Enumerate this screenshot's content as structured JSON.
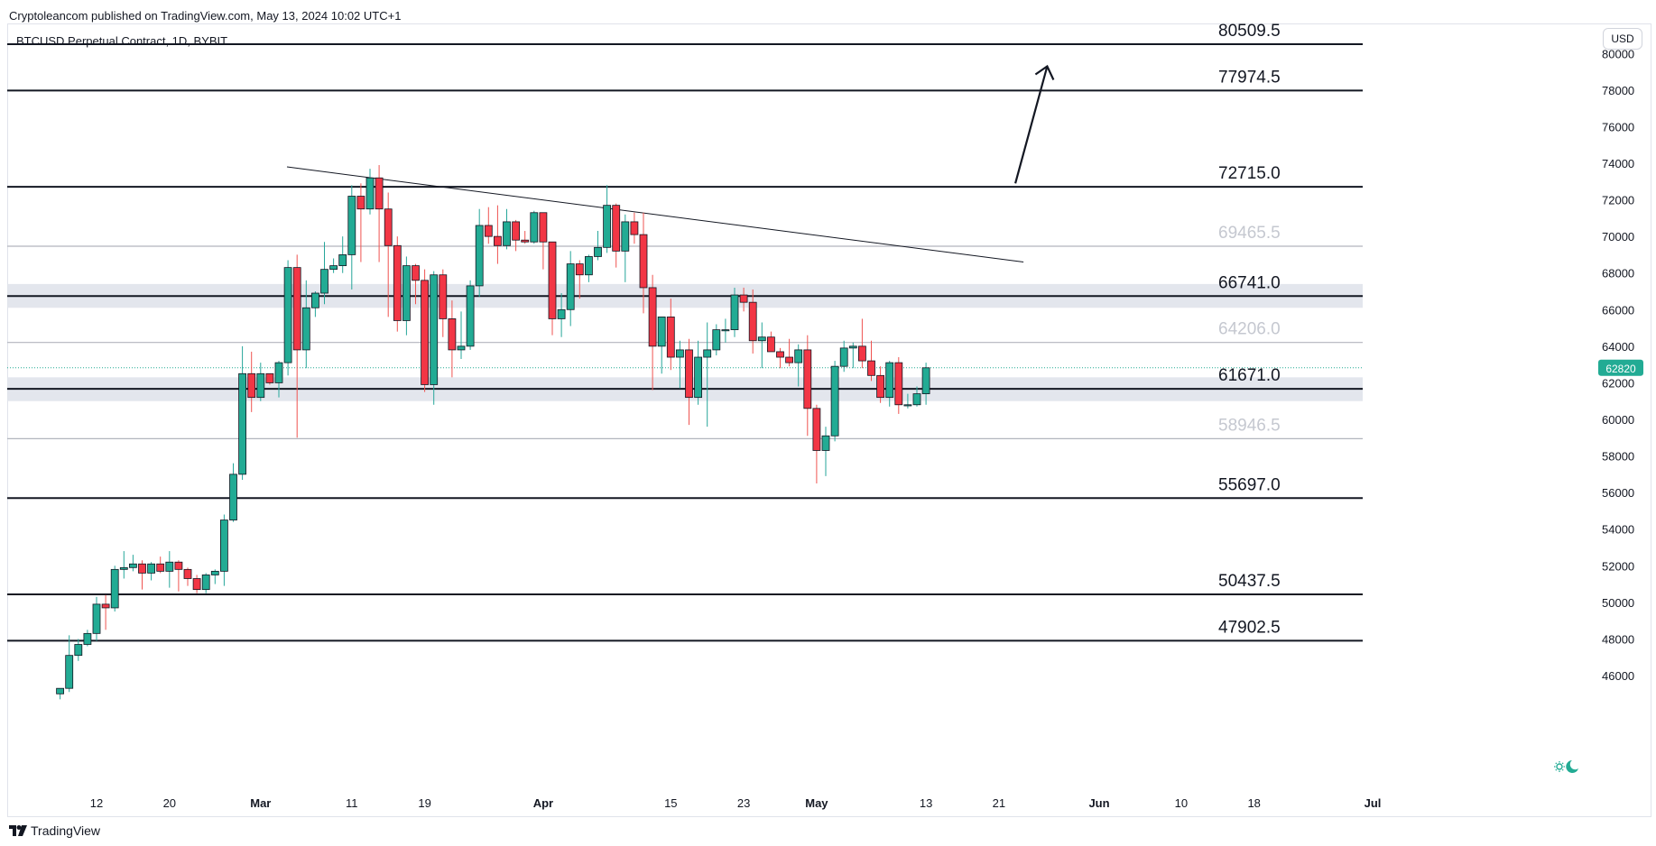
{
  "header": {
    "published": "Cryptoleancom published on TradingView.com, May 13, 2024 10:02 UTC+1",
    "symbol": "BTCUSD Perpetual Contract, 1D, BYBIT",
    "currency_button": "USD"
  },
  "footer": {
    "brand": "TradingView"
  },
  "colors": {
    "up": "#26a69a",
    "down": "#ef5350",
    "body_up": "#22ab94",
    "body_down": "#f23645",
    "price_badge": "#22ab94",
    "zone": "#e0e3eb",
    "level_dark": "#131722",
    "level_light": "#b2b5be"
  },
  "icons": [
    "tradingview-logo-icon",
    "theme-toggle-icon"
  ],
  "chart_data": {
    "type": "candlestick",
    "title": "BTCUSD Perpetual Contract, 1D, BYBIT",
    "ylim": [
      44800,
      84000
    ],
    "y_ticks": [
      46000,
      48000,
      50000,
      52000,
      54000,
      56000,
      58000,
      60000,
      62000,
      64000,
      66000,
      68000,
      70000,
      72000,
      74000,
      76000,
      78000,
      80000
    ],
    "x_ticks": [
      {
        "label": "12",
        "date": "2024-02-12",
        "bold": false
      },
      {
        "label": "20",
        "date": "2024-02-20",
        "bold": false
      },
      {
        "label": "Mar",
        "date": "2024-03-01",
        "bold": true
      },
      {
        "label": "11",
        "date": "2024-03-11",
        "bold": false
      },
      {
        "label": "19",
        "date": "2024-03-19",
        "bold": false
      },
      {
        "label": "Apr",
        "date": "2024-04-01",
        "bold": true
      },
      {
        "label": "15",
        "date": "2024-04-15",
        "bold": false
      },
      {
        "label": "23",
        "date": "2024-04-23",
        "bold": false
      },
      {
        "label": "May",
        "date": "2024-05-01",
        "bold": true
      },
      {
        "label": "13",
        "date": "2024-05-13",
        "bold": false
      },
      {
        "label": "21",
        "date": "2024-05-21",
        "bold": false
      },
      {
        "label": "Jun",
        "date": "2024-06-01",
        "bold": true
      },
      {
        "label": "10",
        "date": "2024-06-10",
        "bold": false
      },
      {
        "label": "18",
        "date": "2024-06-18",
        "bold": false
      },
      {
        "label": "Jul",
        "date": "2024-07-01",
        "bold": true
      }
    ],
    "current_price": 62820,
    "levels": [
      {
        "value": 80509.5,
        "label": "80509.5",
        "style": "dark"
      },
      {
        "value": 77974.5,
        "label": "77974.5",
        "style": "dark"
      },
      {
        "value": 72715.0,
        "label": "72715.0",
        "style": "dark"
      },
      {
        "value": 69465.5,
        "label": "69465.5",
        "style": "light"
      },
      {
        "value": 66741.0,
        "label": "66741.0",
        "style": "dark"
      },
      {
        "value": 64206.0,
        "label": "64206.0",
        "style": "light"
      },
      {
        "value": 61671.0,
        "label": "61671.0",
        "style": "dark"
      },
      {
        "value": 58946.5,
        "label": "58946.5",
        "style": "light"
      },
      {
        "value": 55697.0,
        "label": "55697.0",
        "style": "dark"
      },
      {
        "value": 50437.5,
        "label": "50437.5",
        "style": "dark"
      },
      {
        "value": 47902.5,
        "label": "47902.5",
        "style": "dark"
      }
    ],
    "zones": [
      {
        "low": 66100,
        "high": 67400
      },
      {
        "low": 61000,
        "high": 62300
      }
    ],
    "trendline": {
      "start": {
        "date": "2024-03-06",
        "value": 73800
      },
      "end": {
        "date": "2024-05-23",
        "value": 68600
      }
    },
    "arrow": {
      "start": {
        "date": "2024-05-23",
        "value": 72900
      },
      "end": {
        "date": "2024-05-26",
        "value": 79300
      }
    },
    "candles": [
      {
        "date": "2024-02-08",
        "o": 45000,
        "h": 45300,
        "l": 44700,
        "c": 45300
      },
      {
        "date": "2024-02-09",
        "o": 45300,
        "h": 48200,
        "l": 45100,
        "c": 47100
      },
      {
        "date": "2024-02-10",
        "o": 47100,
        "h": 48000,
        "l": 46800,
        "c": 47700
      },
      {
        "date": "2024-02-11",
        "o": 47700,
        "h": 48500,
        "l": 47600,
        "c": 48300
      },
      {
        "date": "2024-02-12",
        "o": 48300,
        "h": 50300,
        "l": 47900,
        "c": 49900
      },
      {
        "date": "2024-02-13",
        "o": 49900,
        "h": 50400,
        "l": 48500,
        "c": 49700
      },
      {
        "date": "2024-02-14",
        "o": 49700,
        "h": 52000,
        "l": 49500,
        "c": 51800
      },
      {
        "date": "2024-02-15",
        "o": 51800,
        "h": 52800,
        "l": 51300,
        "c": 51900
      },
      {
        "date": "2024-02-16",
        "o": 51900,
        "h": 52600,
        "l": 51700,
        "c": 52100
      },
      {
        "date": "2024-02-17",
        "o": 52100,
        "h": 52300,
        "l": 50700,
        "c": 51600
      },
      {
        "date": "2024-02-18",
        "o": 51600,
        "h": 52200,
        "l": 51200,
        "c": 52100
      },
      {
        "date": "2024-02-19",
        "o": 52100,
        "h": 52500,
        "l": 51600,
        "c": 51700
      },
      {
        "date": "2024-02-20",
        "o": 51700,
        "h": 52800,
        "l": 50800,
        "c": 52200
      },
      {
        "date": "2024-02-21",
        "o": 52200,
        "h": 52300,
        "l": 50600,
        "c": 51800
      },
      {
        "date": "2024-02-22",
        "o": 51800,
        "h": 51900,
        "l": 50900,
        "c": 51300
      },
      {
        "date": "2024-02-23",
        "o": 51300,
        "h": 51500,
        "l": 50500,
        "c": 50700
      },
      {
        "date": "2024-02-24",
        "o": 50700,
        "h": 51600,
        "l": 50500,
        "c": 51500
      },
      {
        "date": "2024-02-25",
        "o": 51500,
        "h": 51800,
        "l": 51000,
        "c": 51700
      },
      {
        "date": "2024-02-26",
        "o": 51700,
        "h": 54800,
        "l": 50900,
        "c": 54500
      },
      {
        "date": "2024-02-27",
        "o": 54500,
        "h": 57600,
        "l": 54400,
        "c": 57000
      },
      {
        "date": "2024-02-28",
        "o": 57000,
        "h": 64000,
        "l": 56700,
        "c": 62500
      },
      {
        "date": "2024-02-29",
        "o": 62500,
        "h": 63700,
        "l": 60400,
        "c": 61200
      },
      {
        "date": "2024-03-01",
        "o": 61200,
        "h": 63100,
        "l": 61000,
        "c": 62500
      },
      {
        "date": "2024-03-02",
        "o": 62500,
        "h": 62500,
        "l": 61900,
        "c": 62000
      },
      {
        "date": "2024-03-03",
        "o": 62000,
        "h": 63200,
        "l": 61200,
        "c": 63100
      },
      {
        "date": "2024-03-04",
        "o": 63100,
        "h": 68700,
        "l": 62400,
        "c": 68300
      },
      {
        "date": "2024-03-05",
        "o": 68300,
        "h": 69000,
        "l": 59000,
        "c": 63800
      },
      {
        "date": "2024-03-06",
        "o": 63800,
        "h": 67600,
        "l": 62800,
        "c": 66100
      },
      {
        "date": "2024-03-07",
        "o": 66100,
        "h": 67000,
        "l": 65600,
        "c": 66900
      },
      {
        "date": "2024-03-08",
        "o": 66900,
        "h": 69700,
        "l": 66300,
        "c": 68200
      },
      {
        "date": "2024-03-09",
        "o": 68200,
        "h": 68800,
        "l": 68000,
        "c": 68400
      },
      {
        "date": "2024-03-10",
        "o": 68400,
        "h": 70000,
        "l": 68000,
        "c": 69000
      },
      {
        "date": "2024-03-11",
        "o": 69000,
        "h": 72800,
        "l": 67100,
        "c": 72200
      },
      {
        "date": "2024-03-12",
        "o": 72200,
        "h": 72900,
        "l": 68600,
        "c": 71500
      },
      {
        "date": "2024-03-13",
        "o": 71500,
        "h": 73700,
        "l": 71200,
        "c": 73200
      },
      {
        "date": "2024-03-14",
        "o": 73200,
        "h": 73900,
        "l": 68600,
        "c": 71500
      },
      {
        "date": "2024-03-15",
        "o": 71500,
        "h": 72400,
        "l": 65600,
        "c": 69500
      },
      {
        "date": "2024-03-16",
        "o": 69500,
        "h": 70000,
        "l": 64800,
        "c": 65400
      },
      {
        "date": "2024-03-17",
        "o": 65400,
        "h": 68900,
        "l": 64600,
        "c": 68400
      },
      {
        "date": "2024-03-18",
        "o": 68400,
        "h": 68500,
        "l": 66300,
        "c": 67600
      },
      {
        "date": "2024-03-19",
        "o": 67600,
        "h": 68200,
        "l": 61500,
        "c": 61900
      },
      {
        "date": "2024-03-20",
        "o": 61900,
        "h": 68100,
        "l": 60800,
        "c": 67900
      },
      {
        "date": "2024-03-21",
        "o": 67900,
        "h": 68200,
        "l": 64500,
        "c": 65500
      },
      {
        "date": "2024-03-22",
        "o": 65500,
        "h": 66500,
        "l": 62300,
        "c": 63800
      },
      {
        "date": "2024-03-23",
        "o": 63800,
        "h": 65900,
        "l": 63300,
        "c": 64000
      },
      {
        "date": "2024-03-24",
        "o": 64000,
        "h": 67600,
        "l": 63800,
        "c": 67300
      },
      {
        "date": "2024-03-25",
        "o": 67300,
        "h": 71500,
        "l": 66700,
        "c": 70600
      },
      {
        "date": "2024-03-26",
        "o": 70600,
        "h": 71600,
        "l": 69600,
        "c": 70000
      },
      {
        "date": "2024-03-27",
        "o": 70000,
        "h": 71700,
        "l": 68500,
        "c": 69500
      },
      {
        "date": "2024-03-28",
        "o": 69500,
        "h": 71500,
        "l": 69300,
        "c": 70800
      },
      {
        "date": "2024-03-29",
        "o": 70800,
        "h": 70900,
        "l": 69200,
        "c": 69800
      },
      {
        "date": "2024-03-30",
        "o": 69800,
        "h": 70300,
        "l": 69600,
        "c": 69700
      },
      {
        "date": "2024-03-31",
        "o": 69700,
        "h": 71400,
        "l": 69600,
        "c": 71300
      },
      {
        "date": "2024-04-01",
        "o": 71300,
        "h": 71300,
        "l": 68200,
        "c": 69700
      },
      {
        "date": "2024-04-02",
        "o": 69700,
        "h": 69700,
        "l": 64600,
        "c": 65500
      },
      {
        "date": "2024-04-03",
        "o": 65500,
        "h": 66900,
        "l": 64500,
        "c": 66000
      },
      {
        "date": "2024-04-04",
        "o": 66000,
        "h": 69200,
        "l": 65100,
        "c": 68500
      },
      {
        "date": "2024-04-05",
        "o": 68500,
        "h": 68700,
        "l": 66600,
        "c": 67900
      },
      {
        "date": "2024-04-06",
        "o": 67900,
        "h": 69000,
        "l": 67500,
        "c": 68900
      },
      {
        "date": "2024-04-07",
        "o": 68900,
        "h": 70300,
        "l": 68700,
        "c": 69400
      },
      {
        "date": "2024-04-08",
        "o": 69400,
        "h": 72800,
        "l": 69100,
        "c": 71700
      },
      {
        "date": "2024-04-09",
        "o": 71700,
        "h": 71800,
        "l": 68300,
        "c": 69200
      },
      {
        "date": "2024-04-10",
        "o": 69200,
        "h": 71200,
        "l": 67500,
        "c": 70800
      },
      {
        "date": "2024-04-11",
        "o": 70800,
        "h": 71300,
        "l": 69600,
        "c": 70100
      },
      {
        "date": "2024-04-12",
        "o": 70100,
        "h": 71300,
        "l": 65800,
        "c": 67200
      },
      {
        "date": "2024-04-13",
        "o": 67200,
        "h": 67900,
        "l": 61600,
        "c": 64000
      },
      {
        "date": "2024-04-14",
        "o": 64000,
        "h": 65600,
        "l": 62500,
        "c": 65600
      },
      {
        "date": "2024-04-15",
        "o": 65600,
        "h": 66600,
        "l": 62700,
        "c": 63400
      },
      {
        "date": "2024-04-16",
        "o": 63400,
        "h": 64300,
        "l": 61700,
        "c": 63800
      },
      {
        "date": "2024-04-17",
        "o": 63800,
        "h": 64400,
        "l": 59700,
        "c": 61200
      },
      {
        "date": "2024-04-18",
        "o": 61200,
        "h": 64300,
        "l": 60800,
        "c": 63400
      },
      {
        "date": "2024-04-19",
        "o": 63400,
        "h": 65300,
        "l": 59600,
        "c": 63800
      },
      {
        "date": "2024-04-20",
        "o": 63800,
        "h": 65200,
        "l": 63500,
        "c": 64900
      },
      {
        "date": "2024-04-21",
        "o": 64900,
        "h": 65500,
        "l": 64200,
        "c": 64900
      },
      {
        "date": "2024-04-22",
        "o": 64900,
        "h": 67200,
        "l": 64500,
        "c": 66800
      },
      {
        "date": "2024-04-23",
        "o": 66800,
        "h": 67200,
        "l": 65900,
        "c": 66400
      },
      {
        "date": "2024-04-24",
        "o": 66400,
        "h": 67100,
        "l": 63600,
        "c": 64300
      },
      {
        "date": "2024-04-25",
        "o": 64300,
        "h": 65300,
        "l": 62800,
        "c": 64500
      },
      {
        "date": "2024-04-26",
        "o": 64500,
        "h": 64800,
        "l": 63700,
        "c": 63700
      },
      {
        "date": "2024-04-27",
        "o": 63700,
        "h": 63900,
        "l": 62800,
        "c": 63400
      },
      {
        "date": "2024-04-28",
        "o": 63400,
        "h": 64400,
        "l": 62900,
        "c": 63100
      },
      {
        "date": "2024-04-29",
        "o": 63100,
        "h": 64100,
        "l": 61800,
        "c": 63800
      },
      {
        "date": "2024-04-30",
        "o": 63800,
        "h": 64600,
        "l": 59100,
        "c": 60600
      },
      {
        "date": "2024-05-01",
        "o": 60600,
        "h": 60800,
        "l": 56500,
        "c": 58300
      },
      {
        "date": "2024-05-02",
        "o": 58300,
        "h": 59600,
        "l": 56900,
        "c": 59100
      },
      {
        "date": "2024-05-03",
        "o": 59100,
        "h": 63200,
        "l": 58800,
        "c": 62900
      },
      {
        "date": "2024-05-04",
        "o": 62900,
        "h": 64300,
        "l": 62600,
        "c": 63900
      },
      {
        "date": "2024-05-05",
        "o": 63900,
        "h": 64200,
        "l": 62800,
        "c": 64000
      },
      {
        "date": "2024-05-06",
        "o": 64000,
        "h": 65500,
        "l": 62800,
        "c": 63200
      },
      {
        "date": "2024-05-07",
        "o": 63200,
        "h": 64300,
        "l": 62100,
        "c": 62400
      },
      {
        "date": "2024-05-08",
        "o": 62400,
        "h": 62900,
        "l": 60900,
        "c": 61200
      },
      {
        "date": "2024-05-09",
        "o": 61200,
        "h": 63200,
        "l": 60700,
        "c": 63100
      },
      {
        "date": "2024-05-10",
        "o": 63100,
        "h": 63400,
        "l": 60300,
        "c": 60800
      },
      {
        "date": "2024-05-11",
        "o": 60800,
        "h": 61400,
        "l": 60600,
        "c": 60800
      },
      {
        "date": "2024-05-12",
        "o": 60800,
        "h": 61800,
        "l": 60700,
        "c": 61400
      },
      {
        "date": "2024-05-13",
        "o": 61400,
        "h": 63100,
        "l": 60800,
        "c": 62820
      }
    ]
  }
}
